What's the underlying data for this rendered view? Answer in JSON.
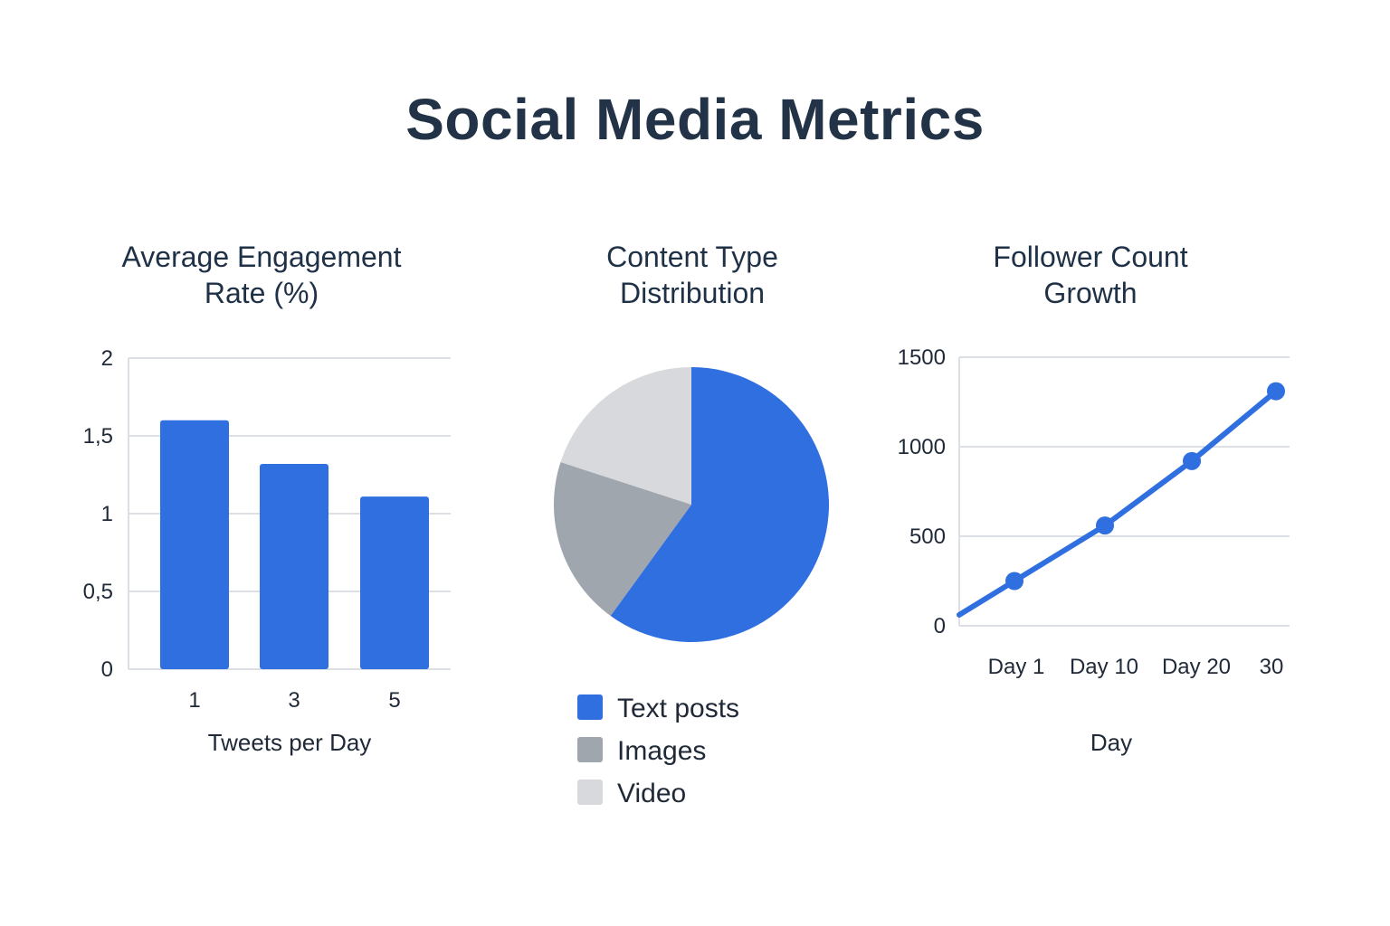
{
  "title": "Social Media Metrics",
  "colors": {
    "primary": "#2f6fe0",
    "gray": "#a0a6ae",
    "light_gray": "#d8d9dc",
    "grid": "#dcdfe4",
    "text": "#1f3147"
  },
  "chart_data": [
    {
      "type": "bar",
      "title_lines": [
        "Average Engagement",
        "Rate (%)"
      ],
      "categories": [
        "1",
        "3",
        "5"
      ],
      "values": [
        1.6,
        1.32,
        1.11
      ],
      "xlabel": "Tweets per Day",
      "ylabel": "",
      "ylim": [
        0,
        2
      ],
      "yticks": [
        0,
        0.5,
        1,
        1.5,
        2
      ],
      "ytick_labels": [
        "0",
        "0,5",
        "1",
        "1,5",
        "2"
      ],
      "grid": true,
      "color": "#2f6fe0"
    },
    {
      "type": "pie",
      "title_lines": [
        "Content Type",
        "Distribution"
      ],
      "slices": [
        {
          "label": "Text posts",
          "value": 60,
          "color": "#2f6fe0"
        },
        {
          "label": "Images",
          "value": 20,
          "color": "#a0a6ae"
        },
        {
          "label": "Video",
          "value": 20,
          "color": "#d8d9dc"
        }
      ],
      "legend_position": "bottom"
    },
    {
      "type": "line",
      "title_lines": [
        "Follower Count",
        "Growth"
      ],
      "x": [
        1,
        10,
        20,
        30
      ],
      "xtick_labels": [
        "Day 1",
        "Day 10",
        "Day 20",
        "30"
      ],
      "y": [
        250,
        560,
        920,
        1310
      ],
      "xlabel": "Day",
      "ylabel": "",
      "ylim": [
        0,
        1500
      ],
      "yticks": [
        0,
        500,
        1000,
        1500
      ],
      "ytick_labels": [
        "0",
        "500",
        "1000",
        "1500"
      ],
      "grid": true,
      "color": "#2f6fe0"
    }
  ]
}
